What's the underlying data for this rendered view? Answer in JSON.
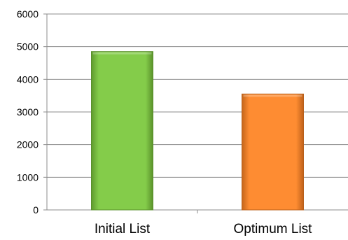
{
  "chart_data": {
    "type": "bar",
    "title": "",
    "xlabel": "",
    "ylabel": "",
    "categories": [
      "Initial List",
      "Optimum List"
    ],
    "values": [
      4850,
      3550
    ],
    "bar_colors": [
      "#84CC4A",
      "#FE8C32"
    ],
    "ylim": [
      0,
      6000
    ],
    "yticks": [
      0,
      1000,
      2000,
      3000,
      4000,
      5000,
      6000
    ],
    "ytick_labels": [
      "0",
      "1000",
      "2000",
      "3000",
      "4000",
      "5000",
      "6000"
    ],
    "grid": true,
    "legend": "none"
  }
}
